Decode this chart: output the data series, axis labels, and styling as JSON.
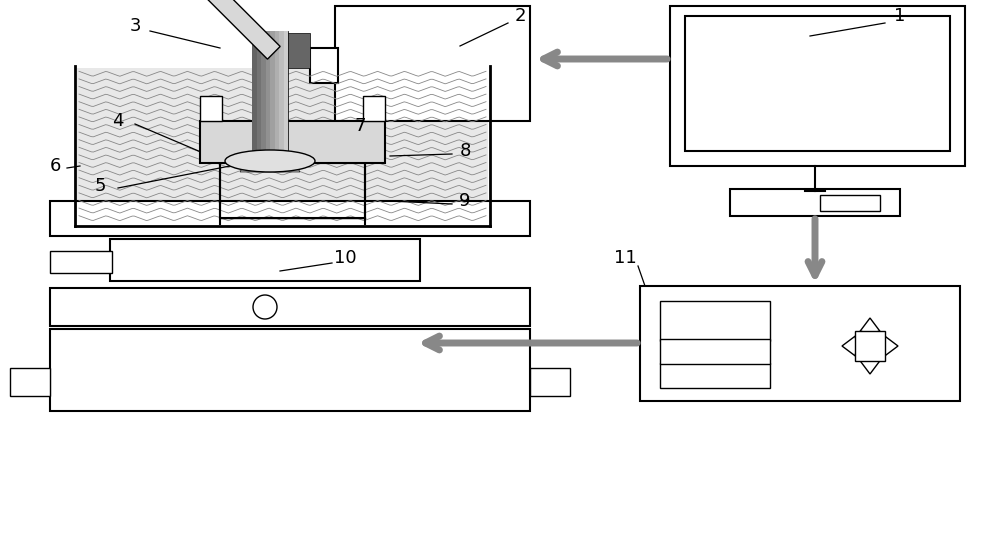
{
  "bg": "#ffffff",
  "lc": "#000000",
  "gc": "#888888",
  "dg": "#555555",
  "ac": "#888888",
  "lw": 1.5,
  "lw2": 1.0
}
